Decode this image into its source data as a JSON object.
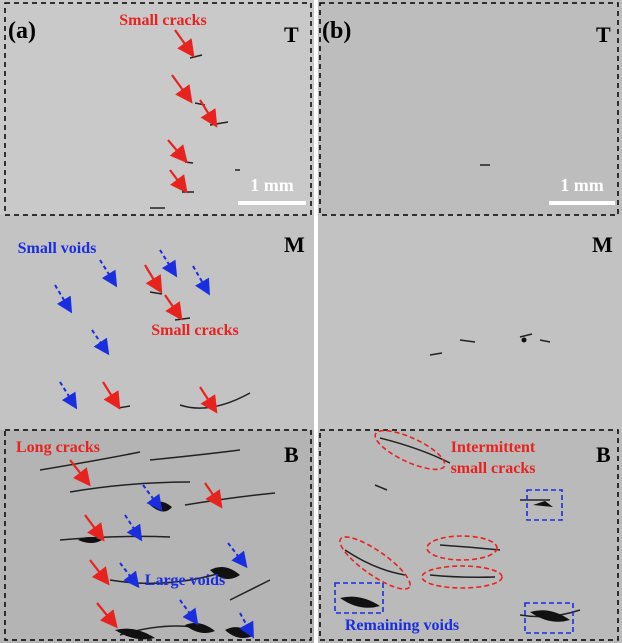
{
  "panels": [
    {
      "label": "(a)",
      "scale_bar": "1 mm",
      "sections": [
        {
          "label": "T",
          "annotations": [
            "Small cracks"
          ]
        },
        {
          "label": "M",
          "annotations": [
            "Small voids",
            "Small cracks"
          ]
        },
        {
          "label": "B",
          "annotations": [
            "Long cracks",
            "Large voids"
          ]
        }
      ]
    },
    {
      "label": "(b)",
      "scale_bar": "1 mm",
      "sections": [
        {
          "label": "T"
        },
        {
          "label": "M"
        },
        {
          "label": "B",
          "annotations": [
            "Intermittent",
            "small cracks",
            "Remaining voids"
          ]
        }
      ]
    }
  ]
}
